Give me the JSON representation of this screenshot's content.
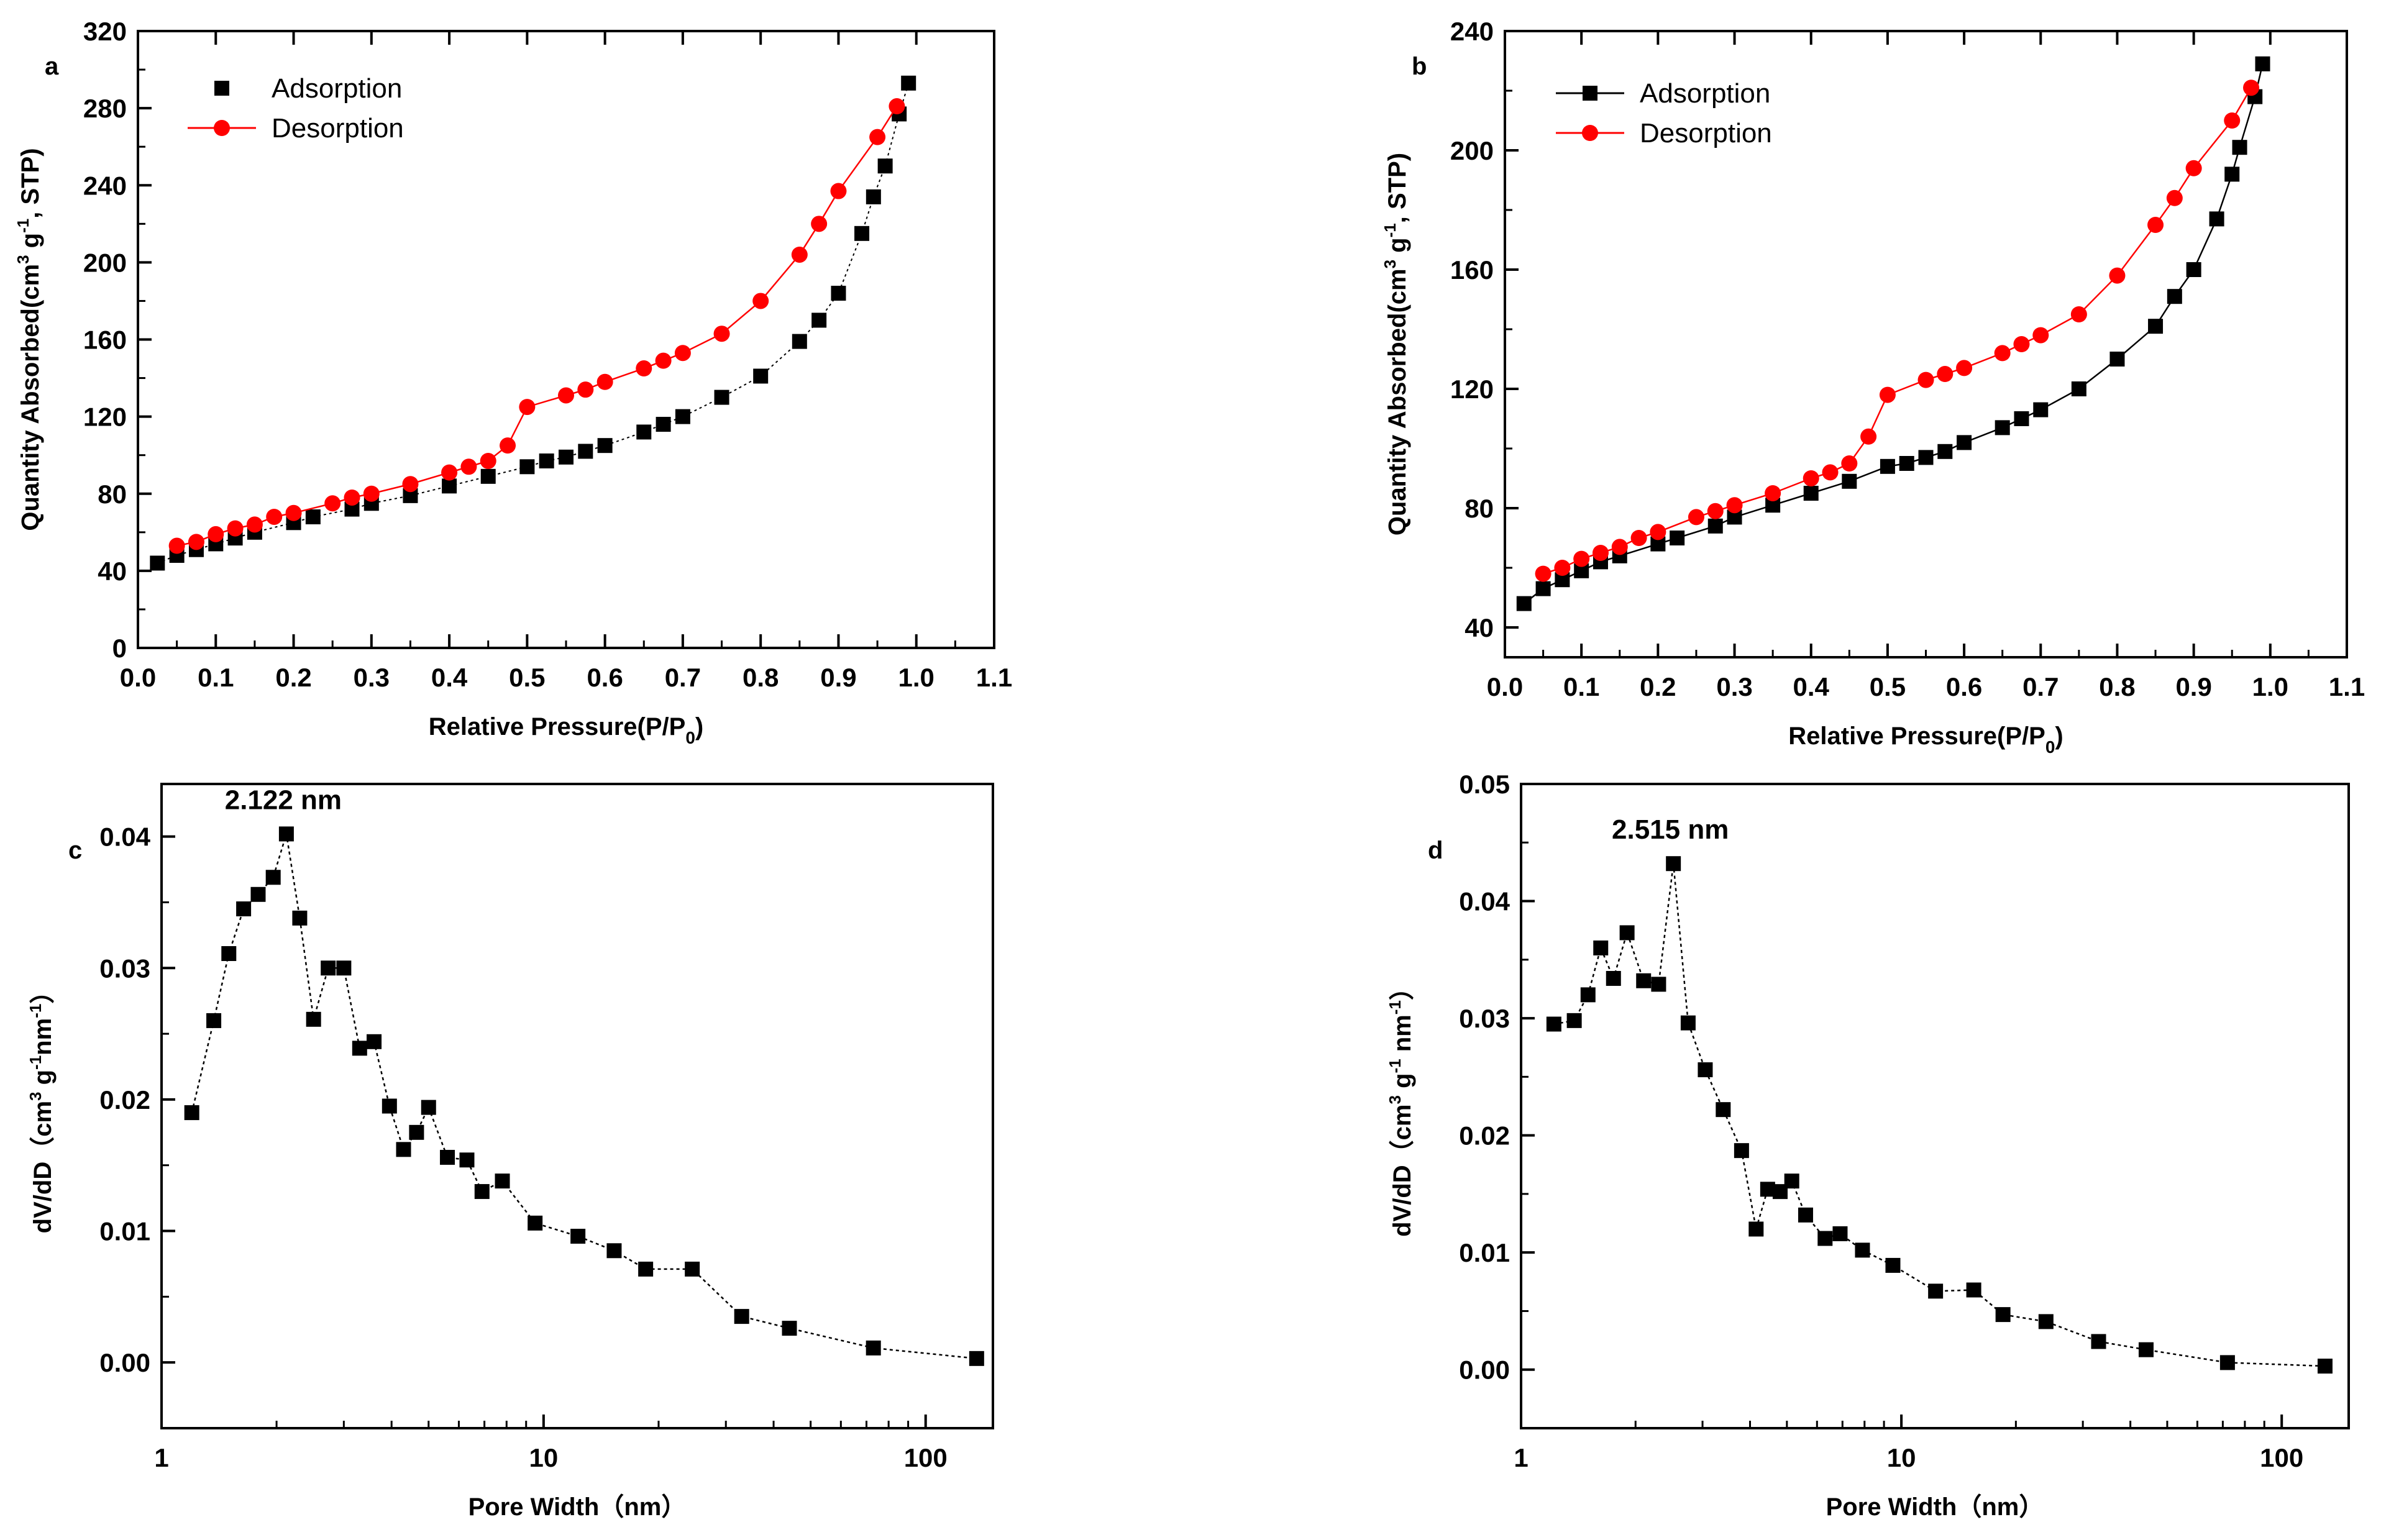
{
  "colors": {
    "adsorption": "#000000",
    "desorption": "#ff0000",
    "axis": "#000000"
  },
  "chart_data": [
    {
      "id": "a",
      "type": "scatter",
      "panel_label": "a",
      "xlabel": "Relative Pressure(P/P",
      "xlabel_sub": "0",
      "xlabel_end": ")",
      "ylabel": "Quantity Absorbed(cm",
      "ylabel_parts": [
        "Quantity Absorbed(cm",
        "3",
        " g",
        "-1",
        ", STP)"
      ],
      "xlim": [
        0,
        1.1
      ],
      "ylim": [
        0,
        320
      ],
      "xticks": [
        "0.0",
        "0.1",
        "0.2",
        "0.3",
        "0.4",
        "0.5",
        "0.6",
        "0.7",
        "0.8",
        "0.9",
        "1.0",
        "1.1"
      ],
      "yticks": [
        "0",
        "40",
        "80",
        "120",
        "160",
        "200",
        "240",
        "280",
        "320"
      ],
      "legend": [
        "Adsorption",
        "Desorption"
      ],
      "series": [
        {
          "name": "Adsorption",
          "marker": "square",
          "color": "#000000",
          "line": false,
          "x": [
            0.025,
            0.05,
            0.075,
            0.1,
            0.125,
            0.15,
            0.2,
            0.225,
            0.275,
            0.3,
            0.35,
            0.4,
            0.45,
            0.5,
            0.525,
            0.55,
            0.575,
            0.6,
            0.65,
            0.675,
            0.7,
            0.75,
            0.8,
            0.85,
            0.875,
            0.9,
            0.93,
            0.945,
            0.96,
            0.978,
            0.99
          ],
          "y": [
            44,
            48,
            51,
            54,
            57,
            60,
            65,
            68,
            72,
            75,
            79,
            84,
            89,
            94,
            97,
            99,
            102,
            105,
            112,
            116,
            120,
            130,
            141,
            159,
            170,
            184,
            215,
            234,
            250,
            277,
            293
          ]
        },
        {
          "name": "Desorption",
          "marker": "circle",
          "color": "#ff0000",
          "line": true,
          "x": [
            0.05,
            0.075,
            0.1,
            0.125,
            0.15,
            0.175,
            0.2,
            0.25,
            0.275,
            0.3,
            0.35,
            0.4,
            0.425,
            0.45,
            0.475,
            0.5,
            0.55,
            0.575,
            0.6,
            0.65,
            0.675,
            0.7,
            0.75,
            0.8,
            0.85,
            0.875,
            0.9,
            0.95,
            0.975
          ],
          "y": [
            53,
            55,
            59,
            62,
            64,
            68,
            70,
            75,
            78,
            80,
            85,
            91,
            94,
            97,
            105,
            125,
            131,
            134,
            138,
            145,
            149,
            153,
            163,
            180,
            204,
            220,
            237,
            265,
            281
          ]
        }
      ]
    },
    {
      "id": "b",
      "type": "scatter",
      "panel_label": "b",
      "xlabel": "Relative Pressure(P/P",
      "xlabel_sub": "0",
      "xlabel_end": ")",
      "ylabel_parts": [
        "Quantity Absorbed(cm",
        "3",
        " g",
        "-1",
        ", STP)"
      ],
      "xlim": [
        0,
        1.1
      ],
      "ylim": [
        30,
        240
      ],
      "xticks": [
        "0.0",
        "0.1",
        "0.2",
        "0.3",
        "0.4",
        "0.5",
        "0.6",
        "0.7",
        "0.8",
        "0.9",
        "1.0",
        "1.1"
      ],
      "yticks": [
        "40",
        "80",
        "120",
        "160",
        "200",
        "240"
      ],
      "legend": [
        "Adsorption",
        "Desorption"
      ],
      "series": [
        {
          "name": "Adsorption",
          "marker": "square",
          "color": "#000000",
          "line": true,
          "x": [
            0.025,
            0.05,
            0.075,
            0.1,
            0.125,
            0.15,
            0.2,
            0.225,
            0.275,
            0.3,
            0.35,
            0.4,
            0.45,
            0.5,
            0.525,
            0.55,
            0.575,
            0.6,
            0.65,
            0.675,
            0.7,
            0.75,
            0.8,
            0.85,
            0.875,
            0.9,
            0.93,
            0.95,
            0.96,
            0.98,
            0.99
          ],
          "y": [
            48,
            53,
            56,
            59,
            62,
            64,
            68,
            70,
            74,
            77,
            81,
            85,
            89,
            94,
            95,
            97,
            99,
            102,
            107,
            110,
            113,
            120,
            130,
            141,
            151,
            160,
            177,
            192,
            201,
            218,
            229
          ]
        },
        {
          "name": "Desorption",
          "marker": "circle",
          "color": "#ff0000",
          "line": true,
          "x": [
            0.05,
            0.075,
            0.1,
            0.125,
            0.15,
            0.175,
            0.2,
            0.25,
            0.275,
            0.3,
            0.35,
            0.4,
            0.425,
            0.45,
            0.475,
            0.5,
            0.55,
            0.575,
            0.6,
            0.65,
            0.675,
            0.7,
            0.75,
            0.8,
            0.85,
            0.875,
            0.9,
            0.95,
            0.975
          ],
          "y": [
            58,
            60,
            63,
            65,
            67,
            70,
            72,
            77,
            79,
            81,
            85,
            90,
            92,
            95,
            104,
            118,
            123,
            125,
            127,
            132,
            135,
            138,
            145,
            158,
            175,
            184,
            194,
            210,
            221
          ]
        }
      ]
    },
    {
      "id": "c",
      "type": "scatter",
      "xscale": "log",
      "panel_label": "c",
      "xlabel": "Pore Width（nm）",
      "ylabel_parts": [
        "dV/dD（cm",
        "3",
        " g",
        "-1",
        "nm",
        "-1",
        "）"
      ],
      "xlim": [
        1,
        150
      ],
      "ylim": [
        -0.005,
        0.044
      ],
      "xticks": [
        "1",
        "10",
        "100"
      ],
      "yticks": [
        "0.00",
        "0.01",
        "0.02",
        "0.03",
        "0.04"
      ],
      "annotation": {
        "text": "2.122 nm",
        "x": 2.122,
        "y": 0.0402
      },
      "series": [
        {
          "name": "dV/dD",
          "marker": "square",
          "color": "#000000",
          "line": true,
          "x": [
            1.2,
            1.37,
            1.5,
            1.64,
            1.79,
            1.96,
            2.122,
            2.3,
            2.5,
            2.73,
            3.0,
            3.3,
            3.6,
            3.95,
            4.3,
            4.65,
            5.0,
            5.6,
            6.3,
            6.9,
            7.8,
            9.5,
            12.3,
            15.3,
            18.5,
            24.5,
            33,
            44,
            73,
            136
          ],
          "y": [
            0.019,
            0.026,
            0.0311,
            0.0345,
            0.0356,
            0.0369,
            0.0402,
            0.0338,
            0.0261,
            0.03,
            0.03,
            0.0239,
            0.0244,
            0.0195,
            0.0162,
            0.0175,
            0.0194,
            0.0156,
            0.0154,
            0.013,
            0.0138,
            0.0106,
            0.0096,
            0.0085,
            0.0071,
            0.0071,
            0.0035,
            0.0026,
            0.0011,
            0.0003
          ]
        }
      ]
    },
    {
      "id": "d",
      "type": "scatter",
      "xscale": "log",
      "panel_label": "d",
      "xlabel": "Pore Width（nm）",
      "ylabel_parts": [
        "dV/dD（cm",
        "3",
        " g",
        "-1",
        " nm",
        "-1",
        "）"
      ],
      "xlim": [
        1,
        150
      ],
      "ylim": [
        -0.005,
        0.05
      ],
      "xticks": [
        "1",
        "10",
        "100"
      ],
      "yticks": [
        "0.00",
        "0.01",
        "0.02",
        "0.03",
        "0.04",
        "0.05"
      ],
      "annotation": {
        "text": "2.515 nm",
        "x": 2.515,
        "y": 0.0432
      },
      "series": [
        {
          "name": "dV/dD",
          "marker": "square",
          "color": "#000000",
          "line": true,
          "x": [
            1.22,
            1.38,
            1.5,
            1.62,
            1.75,
            1.9,
            2.1,
            2.3,
            2.515,
            2.75,
            3.05,
            3.4,
            3.8,
            4.15,
            4.45,
            4.8,
            5.15,
            5.6,
            6.3,
            6.9,
            7.9,
            9.5,
            12.3,
            15.5,
            18.5,
            24,
            33,
            44,
            72,
            130
          ],
          "y": [
            0.0295,
            0.0298,
            0.032,
            0.036,
            0.0334,
            0.0373,
            0.0332,
            0.0329,
            0.0432,
            0.0296,
            0.0256,
            0.0222,
            0.0187,
            0.012,
            0.0154,
            0.0152,
            0.0161,
            0.0132,
            0.0112,
            0.0116,
            0.0102,
            0.0089,
            0.0067,
            0.0068,
            0.0047,
            0.0041,
            0.0024,
            0.0017,
            0.0006,
            0.0003
          ]
        }
      ]
    }
  ]
}
